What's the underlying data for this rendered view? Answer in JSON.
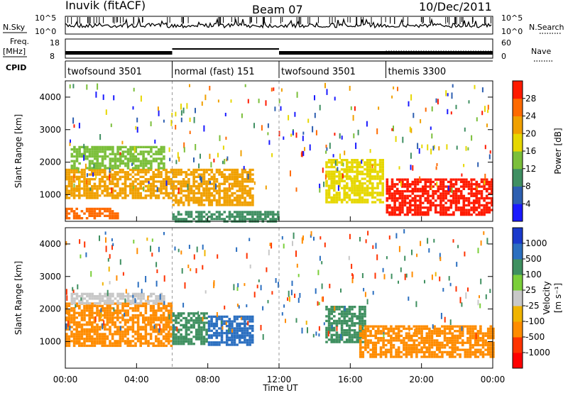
{
  "header": {
    "station": "Inuvik (fitACF)",
    "beam": "Beam 07",
    "date": "10/Dec/2011"
  },
  "top_panel": {
    "nsky_label": "N.Sky",
    "freq_label": "Freq.",
    "freq_unit": "[MHz]",
    "cpid_label": "CPID",
    "nsearch_label": "N.Search",
    "nave_label": "Nave",
    "noise_ticks": [
      "10^5",
      "10^0"
    ],
    "noise_ticks_right": [
      "10^5",
      "10^0"
    ],
    "freq_ticks": [
      "18",
      "8"
    ],
    "nave_ticks": [
      "60",
      "0"
    ]
  },
  "modes": [
    {
      "label": "twofsound 3501",
      "start_h": 0,
      "end_h": 6
    },
    {
      "label": "normal (fast) 151",
      "start_h": 6,
      "end_h": 12
    },
    {
      "label": "twofsound 3501",
      "start_h": 12,
      "end_h": 18
    },
    {
      "label": "themis 3300",
      "start_h": 18,
      "end_h": 24
    }
  ],
  "x_axis": {
    "label": "Time UT",
    "ticks": [
      "00:00",
      "04:00",
      "08:00",
      "12:00",
      "16:00",
      "20:00",
      "00:00"
    ]
  },
  "panels": [
    {
      "ylabel": "Slant Range [km]",
      "colorbar_label": "Power [dB]",
      "colorbar_ticks": [
        "4",
        "8",
        "12",
        "16",
        "20",
        "24",
        "28"
      ]
    },
    {
      "ylabel": "Slant Range [km]",
      "colorbar_label": "Velocity",
      "colorbar_unit": "[m s⁻¹]",
      "colorbar_ticks": [
        "1000",
        "500",
        "100",
        "25",
        "-25",
        "-100",
        "-500",
        "-1000"
      ]
    }
  ],
  "y_ticks": [
    "1000",
    "2000",
    "3000",
    "4000"
  ],
  "chart_data": [
    {
      "type": "heatmap",
      "title": "Power",
      "xlabel": "Time UT",
      "ylabel": "Slant Range [km]",
      "xlim_hours": [
        0,
        24
      ],
      "ylim_km": [
        180,
        4500
      ],
      "colorbar": {
        "label": "Power [dB]",
        "range": [
          0,
          30
        ]
      },
      "echo_regions": [
        {
          "t0": 0.0,
          "t1": 5.9,
          "r0": 900,
          "r1": 1800,
          "level": 22
        },
        {
          "t0": 0.3,
          "t1": 5.5,
          "r0": 1800,
          "r1": 2500,
          "level": 12
        },
        {
          "t0": 0.0,
          "t1": 3.0,
          "r0": 250,
          "r1": 600,
          "level": 26
        },
        {
          "t0": 6.0,
          "t1": 10.5,
          "r0": 700,
          "r1": 1800,
          "level": 20
        },
        {
          "t0": 6.0,
          "t1": 12.0,
          "r0": 200,
          "r1": 500,
          "level": 9
        },
        {
          "t0": 14.6,
          "t1": 17.8,
          "r0": 800,
          "r1": 2100,
          "level": 18
        },
        {
          "t0": 18.0,
          "t1": 24.0,
          "r0": 400,
          "r1": 1500,
          "level": 27
        }
      ]
    },
    {
      "type": "heatmap",
      "title": "Velocity",
      "xlabel": "Time UT",
      "ylabel": "Slant Range [km]",
      "xlim_hours": [
        0,
        24
      ],
      "ylim_km": [
        180,
        4500
      ],
      "colorbar": {
        "label": "Velocity [m s⁻¹]",
        "range": [
          -1000,
          1000
        ]
      },
      "echo_regions": [
        {
          "t0": 0.0,
          "t1": 5.9,
          "r0": 900,
          "r1": 2200,
          "level": -300
        },
        {
          "t0": 0.3,
          "t1": 5.5,
          "r0": 2200,
          "r1": 2500,
          "level": 0
        },
        {
          "t0": 6.0,
          "t1": 8.0,
          "r0": 900,
          "r1": 1900,
          "level": 300
        },
        {
          "t0": 8.0,
          "t1": 10.5,
          "r0": 900,
          "r1": 1800,
          "level": 800
        },
        {
          "t0": 14.6,
          "t1": 16.8,
          "r0": 1000,
          "r1": 2100,
          "level": 200
        },
        {
          "t0": 16.5,
          "t1": 24.0,
          "r0": 500,
          "r1": 1500,
          "level": -200
        }
      ]
    }
  ],
  "colors": {
    "power_scale": [
      "#1a1aff",
      "#2d5fb0",
      "#3f8f62",
      "#7bbf3a",
      "#e6d700",
      "#f0a000",
      "#ff6a00",
      "#ff1a00"
    ],
    "velocity_scale": [
      "#1a3acc",
      "#2b6fc0",
      "#3f9060",
      "#7bcf3a",
      "#c8c8c8",
      "#f0b400",
      "#ff8c00",
      "#ff3300",
      "#ff0000"
    ]
  }
}
